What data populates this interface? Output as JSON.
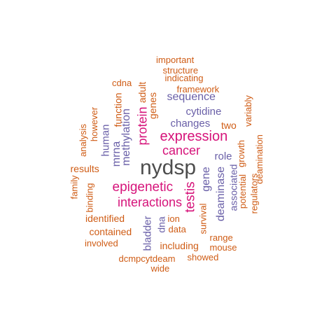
{
  "colors": {
    "background": "#ffffff",
    "dark": "#4d4d4d",
    "magenta": "#d6137a",
    "purple": "#6a60a8",
    "orange": "#cf5c15"
  },
  "words": [
    {
      "text": "nydsp",
      "color": "#4d4d4d"
    },
    {
      "text": "expression",
      "color": "#d6137a"
    },
    {
      "text": "cancer",
      "color": "#d6137a"
    },
    {
      "text": "epigenetic",
      "color": "#d6137a"
    },
    {
      "text": "interactions",
      "color": "#d6137a"
    },
    {
      "text": "testis",
      "color": "#d6137a"
    },
    {
      "text": "protein",
      "color": "#d6137a"
    },
    {
      "text": "sequence",
      "color": "#6a60a8"
    },
    {
      "text": "cytidine",
      "color": "#6a60a8"
    },
    {
      "text": "changes",
      "color": "#6a60a8"
    },
    {
      "text": "role",
      "color": "#6a60a8"
    },
    {
      "text": "gene",
      "color": "#6a60a8"
    },
    {
      "text": "deaminase",
      "color": "#6a60a8"
    },
    {
      "text": "associated",
      "color": "#6a60a8"
    },
    {
      "text": "human",
      "color": "#6a60a8"
    },
    {
      "text": "mrna",
      "color": "#6a60a8"
    },
    {
      "text": "methylation",
      "color": "#6a60a8"
    },
    {
      "text": "bladder",
      "color": "#6a60a8"
    },
    {
      "text": "dna",
      "color": "#6a60a8"
    },
    {
      "text": "important",
      "color": "#cf5c15"
    },
    {
      "text": "structure",
      "color": "#cf5c15"
    },
    {
      "text": "indicating",
      "color": "#cf5c15"
    },
    {
      "text": "framework",
      "color": "#cf5c15"
    },
    {
      "text": "cdna",
      "color": "#cf5c15"
    },
    {
      "text": "function",
      "color": "#cf5c15"
    },
    {
      "text": "genes",
      "color": "#cf5c15"
    },
    {
      "text": "adult",
      "color": "#cf5c15"
    },
    {
      "text": "however",
      "color": "#cf5c15"
    },
    {
      "text": "analysis",
      "color": "#cf5c15"
    },
    {
      "text": "family",
      "color": "#cf5c15"
    },
    {
      "text": "results",
      "color": "#cf5c15"
    },
    {
      "text": "binding",
      "color": "#cf5c15"
    },
    {
      "text": "two",
      "color": "#cf5c15"
    },
    {
      "text": "variably",
      "color": "#cf5c15"
    },
    {
      "text": "deamination",
      "color": "#cf5c15"
    },
    {
      "text": "growth",
      "color": "#cf5c15"
    },
    {
      "text": "potential",
      "color": "#cf5c15"
    },
    {
      "text": "regulators",
      "color": "#cf5c15"
    },
    {
      "text": "identified",
      "color": "#cf5c15"
    },
    {
      "text": "contained",
      "color": "#cf5c15"
    },
    {
      "text": "involved",
      "color": "#cf5c15"
    },
    {
      "text": "ion",
      "color": "#cf5c15"
    },
    {
      "text": "data",
      "color": "#cf5c15"
    },
    {
      "text": "survival",
      "color": "#cf5c15"
    },
    {
      "text": "range",
      "color": "#cf5c15"
    },
    {
      "text": "mouse",
      "color": "#cf5c15"
    },
    {
      "text": "including",
      "color": "#cf5c15"
    },
    {
      "text": "showed",
      "color": "#cf5c15"
    },
    {
      "text": "dcmpcytdeam",
      "color": "#cf5c15"
    },
    {
      "text": "wide",
      "color": "#cf5c15"
    }
  ]
}
